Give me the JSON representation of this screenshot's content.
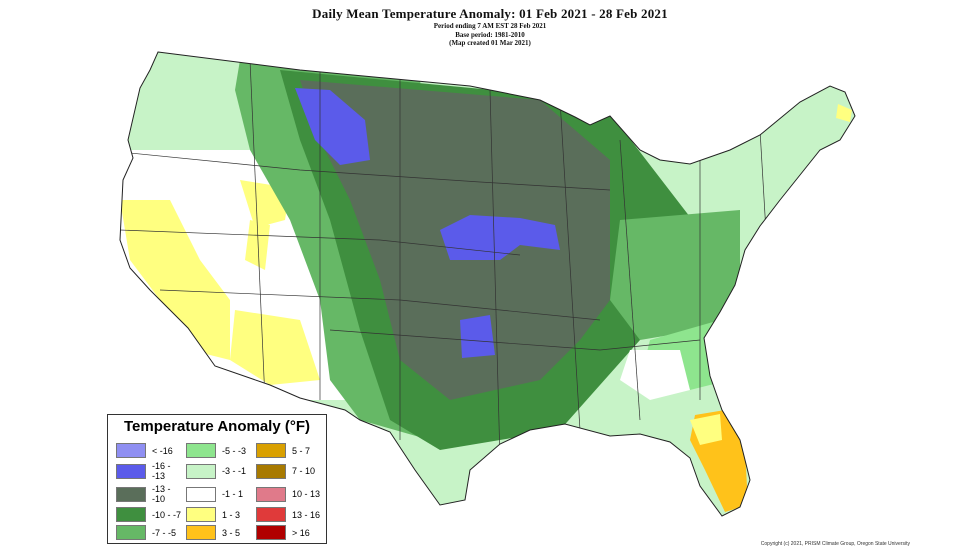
{
  "title": "Daily Mean Temperature Anomaly: 01 Feb 2021 - 28 Feb 2021",
  "subtitle_lines": [
    "Period ending 7 AM EST 28 Feb 2021",
    "Base period: 1981-2010",
    "(Map created 01 Mar 2021)"
  ],
  "legend": {
    "title": "Temperature Anomaly (°F)",
    "items": [
      {
        "label": "< -16",
        "color": "#8f8ff2"
      },
      {
        "label": "-16 - -13",
        "color": "#5b5bea"
      },
      {
        "label": "-13 - -10",
        "color": "#5a6e5a"
      },
      {
        "label": "-10 - -7",
        "color": "#3f8f3f"
      },
      {
        "label": "-7 - -5",
        "color": "#66b866"
      },
      {
        "label": "-5 - -3",
        "color": "#8ee58e"
      },
      {
        "label": "-3 - -1",
        "color": "#c7f3c7"
      },
      {
        "label": "-1 - 1",
        "color": "#ffffff"
      },
      {
        "label": "1 - 3",
        "color": "#ffff80"
      },
      {
        "label": "3 - 5",
        "color": "#ffc21a"
      },
      {
        "label": "5 - 7",
        "color": "#d9a000"
      },
      {
        "label": "7 - 10",
        "color": "#a87a00"
      },
      {
        "label": "10 - 13",
        "color": "#e07a8a"
      },
      {
        "label": "13 - 16",
        "color": "#e03a3a"
      },
      {
        "label": "> 16",
        "color": "#b00000"
      }
    ]
  },
  "credit": "Copyright (c) 2021, PRISM Climate Group, Oregon State University"
}
